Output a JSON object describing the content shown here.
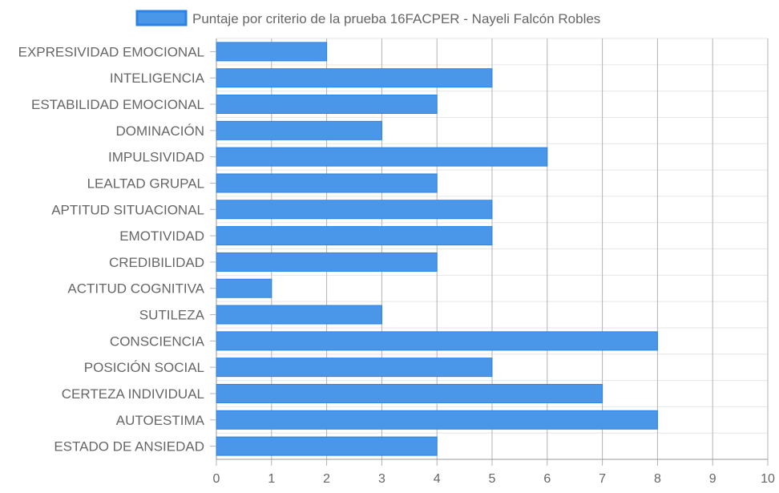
{
  "chart_data": {
    "type": "bar",
    "orientation": "horizontal",
    "categories": [
      "EXPRESIVIDAD EMOCIONAL",
      "INTELIGENCIA",
      "ESTABILIDAD EMOCIONAL",
      "DOMINACIÓN",
      "IMPULSIVIDAD",
      "LEALTAD GRUPAL",
      "APTITUD SITUACIONAL",
      "EMOTIVIDAD",
      "CREDIBILIDAD",
      "ACTITUD COGNITIVA",
      "SUTILEZA",
      "CONSCIENCIA",
      "POSICIÓN SOCIAL",
      "CERTEZA INDIVIDUAL",
      "AUTOESTIMA",
      "ESTADO DE ANSIEDAD"
    ],
    "series": [
      {
        "name": "Puntaje por criterio de la prueba 16FACPER - Nayeli Falcón Robles",
        "values": [
          2,
          5,
          4,
          3,
          6,
          4,
          5,
          5,
          4,
          1,
          3,
          8,
          5,
          7,
          8,
          4
        ],
        "color": "#4a97ea",
        "border_color": "#2a82e4"
      }
    ],
    "xlim": [
      0,
      10
    ],
    "x_ticks": [
      "0",
      "1",
      "2",
      "3",
      "4",
      "5",
      "6",
      "7",
      "8",
      "9",
      "10"
    ],
    "grid": true,
    "legend": "top",
    "title": "",
    "xlabel": "",
    "ylabel": ""
  }
}
